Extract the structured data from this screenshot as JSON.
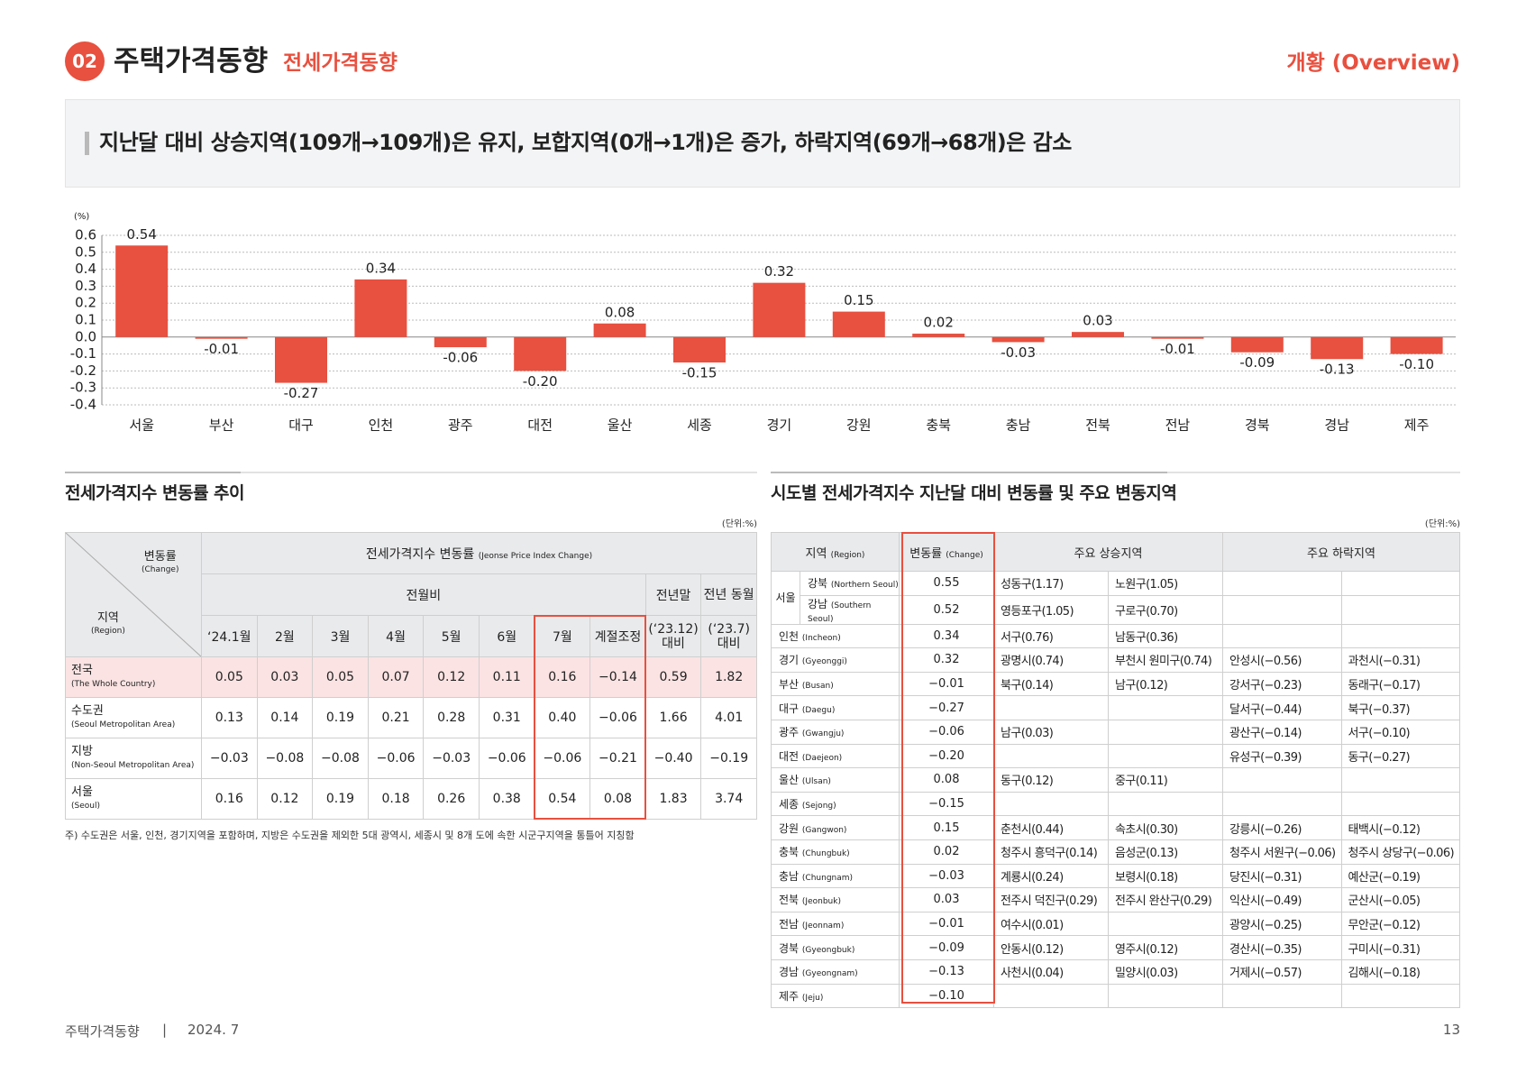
{
  "header": {
    "num": "02",
    "title": "주택가격동향",
    "subtitle": "전세가격동향",
    "overview": "개황 (Overview)"
  },
  "headline": "지난달 대비 상승지역(109개→109개)은 유지, 보합지역(0개→1개)은 증가, 하락지역(69개→68개)은 감소",
  "chart_data": {
    "type": "bar",
    "y_unit": "(%)",
    "categories": [
      "서울",
      "부산",
      "대구",
      "인천",
      "광주",
      "대전",
      "울산",
      "세종",
      "경기",
      "강원",
      "충북",
      "충남",
      "전북",
      "전남",
      "경북",
      "경남",
      "제주"
    ],
    "values": [
      0.54,
      -0.01,
      -0.27,
      0.34,
      -0.06,
      -0.2,
      0.08,
      -0.15,
      0.32,
      0.15,
      0.02,
      -0.03,
      0.03,
      -0.01,
      -0.09,
      -0.13,
      -0.1
    ],
    "value_labels": [
      "0.54",
      "-0.01",
      "-0.27",
      "0.34",
      "-0.06",
      "-0.20",
      "0.08",
      "-0.15",
      "0.32",
      "0.15",
      "0.02",
      "-0.03",
      "0.03",
      "-0.01",
      "-0.09",
      "-0.13",
      "-0.10"
    ],
    "color": "#e8503f",
    "ylim": [
      -0.4,
      0.6
    ],
    "yticks": [
      0.6,
      0.5,
      0.4,
      0.3,
      0.2,
      0.1,
      {
        "value": 0,
        "label": "0.0"
      },
      -0.1,
      -0.2,
      -0.3,
      -0.4
    ],
    "grid": true
  },
  "left_table": {
    "title": "전세가격지수 변동률 추이",
    "unit": "(단위:%)",
    "corner_top": "변동률",
    "corner_top_en": "(Change)",
    "corner_bottom": "지역",
    "corner_bottom_en": "(Region)",
    "group": "전세가격지수 변동률",
    "group_en": "(Jeonse Price Index Change)",
    "mom": "전월비",
    "ye": "전년말",
    "yoy": "전년 동월",
    "columns": [
      "‘24.1월",
      "2월",
      "3월",
      "4월",
      "5월",
      "6월",
      "7월",
      "계절조정"
    ],
    "ye_sub": "(‘23.12) 대비",
    "yoy_sub": "(‘23.7) 대비",
    "rows": [
      {
        "name": "전국",
        "en": "(The Whole Country)",
        "values": [
          "0.05",
          "0.03",
          "0.05",
          "0.07",
          "0.12",
          "0.11",
          "0.16",
          "−0.14",
          "0.59",
          "1.82"
        ]
      },
      {
        "name": "수도권",
        "en": "(Seoul Metropolitan Area)",
        "values": [
          "0.13",
          "0.14",
          "0.19",
          "0.21",
          "0.28",
          "0.31",
          "0.40",
          "−0.06",
          "1.66",
          "4.01"
        ]
      },
      {
        "name": "지방",
        "en": "(Non-Seoul Metropolitan Area)",
        "values": [
          "−0.03",
          "−0.08",
          "−0.08",
          "−0.06",
          "−0.03",
          "−0.06",
          "−0.06",
          "−0.21",
          "−0.40",
          "−0.19"
        ]
      },
      {
        "name": "서울",
        "en": "(Seoul)",
        "values": [
          "0.16",
          "0.12",
          "0.19",
          "0.18",
          "0.26",
          "0.38",
          "0.54",
          "0.08",
          "1.83",
          "3.74"
        ]
      }
    ],
    "note": "주) 수도권은 서울, 인천, 경기지역을 포함하며, 지방은 수도권을 제외한 5대 광역시, 세종시 및 8개 도에 속한 시군구지역을 통틀어 지칭함"
  },
  "right_table": {
    "title": "시도별 전세가격지수 지난달 대비 변동률 및 주요 변동지역",
    "unit": "(단위:%)",
    "h_region": "지역",
    "h_region_en": "(Region)",
    "h_change": "변동률",
    "h_change_en": "(Change)",
    "h_rising": "주요 상승지역",
    "h_falling": "주요 하락지역",
    "rows": [
      {
        "name": "서울",
        "sub": [
          {
            "name": "강북",
            "en": "(Northern Seoul)",
            "change": "0.55",
            "rising": [
              "성동구(1.17)",
              "노원구(1.05)"
            ],
            "falling": []
          },
          {
            "name": "강남",
            "en": "(Southern Seoul)",
            "change": "0.52",
            "rising": [
              "영등포구(1.05)",
              "구로구(0.70)"
            ],
            "falling": []
          }
        ]
      },
      {
        "name": "인천",
        "en": "(Incheon)",
        "change": "0.34",
        "rising": [
          "서구(0.76)",
          "남동구(0.36)"
        ],
        "falling": []
      },
      {
        "name": "경기",
        "en": "(Gyeonggi)",
        "change": "0.32",
        "rising": [
          "광명시(0.74)",
          "부천시 원미구(0.74)"
        ],
        "falling": [
          "안성시(−0.56)",
          "과천시(−0.31)"
        ]
      },
      {
        "name": "부산",
        "en": "(Busan)",
        "change": "−0.01",
        "rising": [
          "북구(0.14)",
          "남구(0.12)"
        ],
        "falling": [
          "강서구(−0.23)",
          "동래구(−0.17)"
        ]
      },
      {
        "name": "대구",
        "en": "(Daegu)",
        "change": "−0.27",
        "rising": [],
        "falling": [
          "달서구(−0.44)",
          "북구(−0.37)"
        ]
      },
      {
        "name": "광주",
        "en": "(Gwangju)",
        "change": "−0.06",
        "rising": [
          "남구(0.03)"
        ],
        "falling": [
          "광산구(−0.14)",
          "서구(−0.10)"
        ]
      },
      {
        "name": "대전",
        "en": "(Daejeon)",
        "change": "−0.20",
        "rising": [],
        "falling": [
          "유성구(−0.39)",
          "동구(−0.27)"
        ]
      },
      {
        "name": "울산",
        "en": "(Ulsan)",
        "change": "0.08",
        "rising": [
          "동구(0.12)",
          "중구(0.11)"
        ],
        "falling": []
      },
      {
        "name": "세종",
        "en": "(Sejong)",
        "change": "−0.15",
        "rising": [],
        "falling": []
      },
      {
        "name": "강원",
        "en": "(Gangwon)",
        "change": "0.15",
        "rising": [
          "춘천시(0.44)",
          "속초시(0.30)"
        ],
        "falling": [
          "강릉시(−0.26)",
          "태백시(−0.12)"
        ]
      },
      {
        "name": "충북",
        "en": "(Chungbuk)",
        "change": "0.02",
        "rising": [
          "청주시 흥덕구(0.14)",
          "음성군(0.13)"
        ],
        "falling": [
          "청주시 서원구(−0.06)",
          "청주시 상당구(−0.06)"
        ]
      },
      {
        "name": "충남",
        "en": "(Chungnam)",
        "change": "−0.03",
        "rising": [
          "계룡시(0.24)",
          "보령시(0.18)"
        ],
        "falling": [
          "당진시(−0.31)",
          "예산군(−0.19)"
        ]
      },
      {
        "name": "전북",
        "en": "(Jeonbuk)",
        "change": "0.03",
        "rising": [
          "전주시 덕진구(0.29)",
          "전주시 완산구(0.29)"
        ],
        "falling": [
          "익산시(−0.49)",
          "군산시(−0.05)"
        ]
      },
      {
        "name": "전남",
        "en": "(Jeonnam)",
        "change": "−0.01",
        "rising": [
          "여수시(0.01)"
        ],
        "falling": [
          "광양시(−0.25)",
          "무안군(−0.12)"
        ]
      },
      {
        "name": "경북",
        "en": "(Gyeongbuk)",
        "change": "−0.09",
        "rising": [
          "안동시(0.12)",
          "영주시(0.12)"
        ],
        "falling": [
          "경산시(−0.35)",
          "구미시(−0.31)"
        ]
      },
      {
        "name": "경남",
        "en": "(Gyeongnam)",
        "change": "−0.13",
        "rising": [
          "사천시(0.04)",
          "밀양시(0.03)"
        ],
        "falling": [
          "거제시(−0.57)",
          "김해시(−0.18)"
        ]
      },
      {
        "name": "제주",
        "en": "(Jeju)",
        "change": "−0.10",
        "rising": [],
        "falling": []
      }
    ]
  },
  "footer": {
    "left": "주택가격동향",
    "sep": "|",
    "date": "2024. 7",
    "page": "13"
  }
}
